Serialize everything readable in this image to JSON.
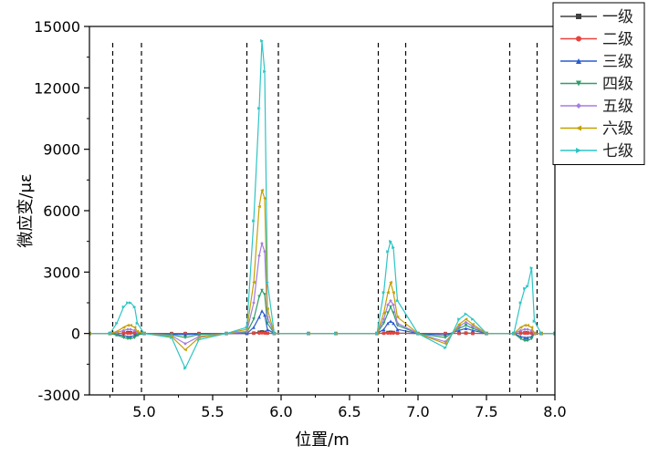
{
  "chart_data": {
    "type": "line",
    "title": "",
    "xlabel": "位置/m",
    "ylabel": "微应变/με",
    "xlim": [
      4.6,
      8.0
    ],
    "ylim": [
      -3000,
      15000
    ],
    "xticks": [
      5.0,
      5.5,
      6.0,
      6.5,
      7.0,
      7.5,
      8.0
    ],
    "yticks": [
      -3000,
      0,
      3000,
      6000,
      9000,
      12000,
      15000
    ],
    "xtick_labels": [
      "5.0",
      "5.5",
      "6.0",
      "6.5",
      "7.0",
      "7.5",
      "8.0"
    ],
    "ytick_labels": [
      "-3000",
      "0",
      "3000",
      "6000",
      "9000",
      "12000",
      "15000"
    ],
    "grid": false,
    "legend_position": "top-right",
    "dashed_lines_x": [
      4.77,
      4.98,
      5.75,
      5.98,
      6.71,
      6.91,
      7.67,
      7.87
    ],
    "x": [
      4.6,
      4.75,
      4.8,
      4.85,
      4.88,
      4.9,
      4.93,
      4.95,
      5.0,
      5.2,
      5.3,
      5.4,
      5.6,
      5.75,
      5.8,
      5.84,
      5.86,
      5.88,
      5.9,
      5.95,
      6.2,
      6.4,
      6.7,
      6.75,
      6.78,
      6.8,
      6.82,
      6.85,
      7.0,
      7.2,
      7.3,
      7.35,
      7.4,
      7.5,
      7.7,
      7.75,
      7.78,
      7.8,
      7.83,
      7.85,
      7.9,
      8.0
    ],
    "series": [
      {
        "name": "一级",
        "color": "#404040",
        "marker": "square",
        "values": [
          0,
          0,
          0,
          20,
          40,
          40,
          20,
          0,
          0,
          0,
          0,
          0,
          0,
          0,
          20,
          60,
          80,
          60,
          20,
          0,
          0,
          0,
          0,
          20,
          50,
          60,
          50,
          20,
          0,
          0,
          10,
          20,
          10,
          0,
          0,
          20,
          30,
          30,
          20,
          0,
          0,
          0
        ]
      },
      {
        "name": "二级",
        "color": "#e8423c",
        "marker": "circle",
        "values": [
          0,
          0,
          0,
          10,
          20,
          20,
          10,
          0,
          0,
          0,
          0,
          0,
          0,
          0,
          10,
          20,
          30,
          20,
          10,
          0,
          0,
          0,
          0,
          10,
          20,
          20,
          20,
          10,
          0,
          0,
          5,
          10,
          5,
          0,
          0,
          10,
          15,
          15,
          10,
          0,
          0,
          0
        ]
      },
      {
        "name": "三级",
        "color": "#2a5ccf",
        "marker": "triangle-up",
        "values": [
          0,
          0,
          -50,
          -100,
          -150,
          -150,
          -100,
          -50,
          0,
          -30,
          -60,
          -20,
          0,
          0,
          300,
          800,
          1100,
          900,
          200,
          0,
          0,
          0,
          0,
          200,
          500,
          600,
          500,
          200,
          0,
          -80,
          150,
          250,
          150,
          0,
          0,
          -150,
          -200,
          -200,
          -150,
          0,
          0,
          0
        ]
      },
      {
        "name": "四级",
        "color": "#2e9e6a",
        "marker": "triangle-down",
        "values": [
          0,
          0,
          -80,
          -200,
          -250,
          -250,
          -200,
          -80,
          0,
          -60,
          -200,
          -50,
          0,
          50,
          700,
          1800,
          2100,
          1900,
          500,
          0,
          0,
          0,
          0,
          500,
          1000,
          1300,
          1000,
          400,
          0,
          -200,
          250,
          400,
          250,
          0,
          0,
          -250,
          -350,
          -350,
          -250,
          0,
          0,
          0
        ]
      },
      {
        "name": "五级",
        "color": "#a57de0",
        "marker": "diamond",
        "values": [
          0,
          0,
          50,
          150,
          200,
          200,
          150,
          50,
          0,
          -100,
          -500,
          -150,
          0,
          100,
          1500,
          3800,
          4400,
          4000,
          800,
          0,
          0,
          0,
          0,
          700,
          1400,
          1600,
          1400,
          500,
          0,
          -400,
          350,
          550,
          350,
          0,
          0,
          150,
          200,
          200,
          150,
          0,
          0,
          0
        ]
      },
      {
        "name": "六级",
        "color": "#c4a000",
        "marker": "triangle-left",
        "values": [
          0,
          0,
          100,
          300,
          400,
          400,
          300,
          100,
          0,
          -150,
          -800,
          -200,
          0,
          200,
          2500,
          6200,
          7000,
          6600,
          1200,
          0,
          0,
          0,
          0,
          1000,
          2000,
          2500,
          2000,
          800,
          0,
          -500,
          450,
          700,
          450,
          0,
          0,
          300,
          400,
          400,
          300,
          0,
          0,
          0
        ]
      },
      {
        "name": "七级",
        "color": "#2ec4c4",
        "marker": "triangle-right",
        "values": [
          0,
          0,
          500,
          1300,
          1500,
          1500,
          1300,
          500,
          0,
          -200,
          -1700,
          -300,
          0,
          300,
          5500,
          11000,
          14300,
          12800,
          2500,
          0,
          0,
          0,
          0,
          2000,
          4000,
          4500,
          4200,
          1600,
          0,
          -700,
          700,
          950,
          700,
          0,
          0,
          1500,
          2200,
          2300,
          3200,
          600,
          0,
          0
        ]
      }
    ]
  }
}
